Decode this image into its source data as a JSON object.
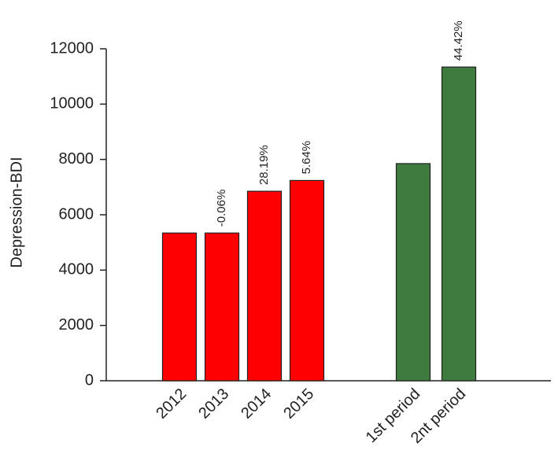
{
  "chart_data": {
    "type": "bar",
    "y_label": "Depression-BDI",
    "categories": [
      "2012",
      "2013",
      "2014",
      "2015",
      "1st period",
      "2nt period"
    ],
    "values": [
      5340,
      5340,
      6850,
      7240,
      7850,
      11340
    ],
    "colors": [
      "#ff0000",
      "#ff0000",
      "#ff0000",
      "#ff0000",
      "#3f7a3f",
      "#3f7a3f"
    ],
    "annotations": [
      null,
      "-0.06%",
      "28.19%",
      "5.64%",
      null,
      "44.42%"
    ],
    "ylim": [
      0,
      12000
    ],
    "yticks": [
      0,
      2000,
      4000,
      6000,
      8000,
      10000,
      12000
    ]
  }
}
